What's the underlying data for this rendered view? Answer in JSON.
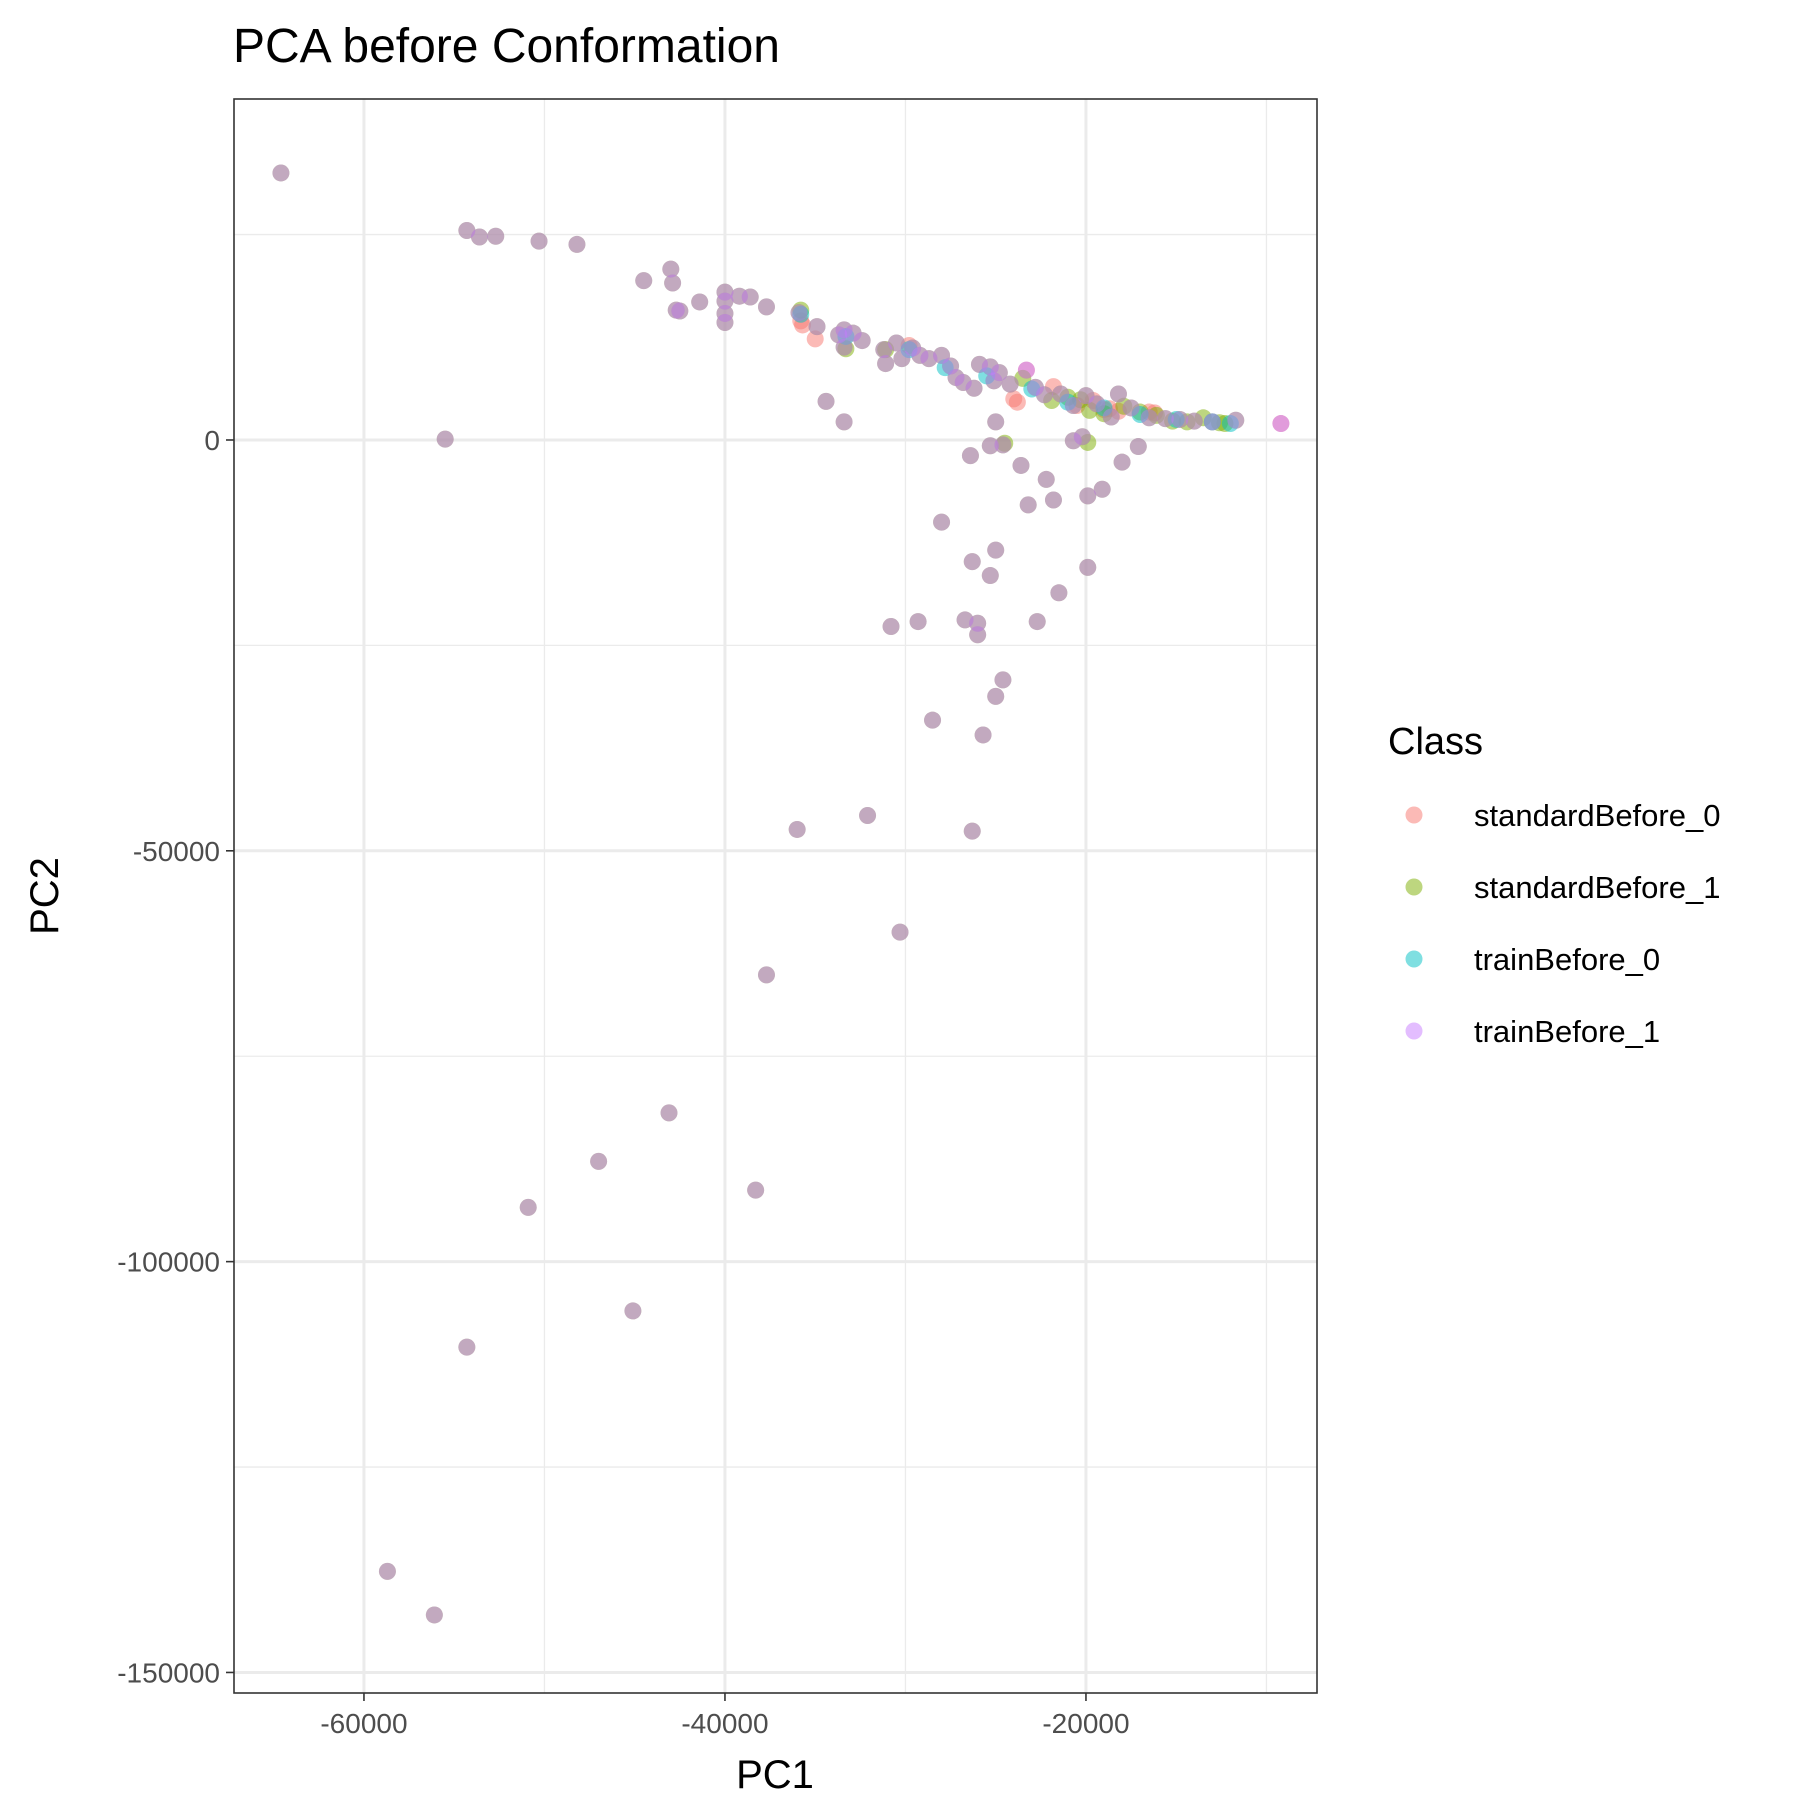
{
  "chart_data": {
    "type": "scatter",
    "title": "PCA before Conformation",
    "xlabel": "PC1",
    "ylabel": "PC2",
    "xlim": [
      -67200,
      -7200
    ],
    "ylim": [
      -152500,
      41500
    ],
    "x_ticks": [
      -60000,
      -40000,
      -20000
    ],
    "y_ticks": [
      -150000,
      -100000,
      -50000,
      0
    ],
    "x_minor_gridlines": [
      -50000,
      -30000,
      -10000
    ],
    "y_minor_gridlines": [
      -125000,
      -75000,
      -25000,
      25000
    ],
    "grid": true,
    "legend": {
      "title": "Class",
      "placement": "right",
      "entries": [
        {
          "name": "standardBefore_0",
          "color": "#F8766D"
        },
        {
          "name": "standardBefore_1",
          "color": "#7CAE00"
        },
        {
          "name": "trainBefore_0",
          "color": "#00BFC4"
        },
        {
          "name": "trainBefore_1",
          "color": "#C77CFF"
        }
      ]
    },
    "overlap_color": "#8A9A55",
    "series": [
      {
        "name": "standardBefore_0",
        "color": "#F8766D",
        "points": [
          [
            -35800,
            14500
          ],
          [
            -35700,
            14000
          ],
          [
            -35000,
            12300
          ],
          [
            -29800,
            11500
          ],
          [
            -23300,
            8500
          ],
          [
            -24000,
            5000
          ],
          [
            -23800,
            4600
          ],
          [
            -21800,
            6500
          ],
          [
            -20500,
            4200
          ],
          [
            -19600,
            4800
          ],
          [
            -19000,
            3700
          ],
          [
            -18700,
            3800
          ],
          [
            -18200,
            3500
          ],
          [
            -16500,
            3400
          ],
          [
            -16200,
            3300
          ],
          [
            -9200,
            2000
          ]
        ]
      },
      {
        "name": "standardBefore_1",
        "color": "#7CAE00",
        "points": [
          [
            -64600,
            32500
          ],
          [
            -54300,
            25500
          ],
          [
            -53600,
            24700
          ],
          [
            -52700,
            24800
          ],
          [
            -50300,
            24200
          ],
          [
            -48200,
            23800
          ],
          [
            -44500,
            19400
          ],
          [
            -43000,
            20800
          ],
          [
            -42900,
            19100
          ],
          [
            -42700,
            15800
          ],
          [
            -42500,
            15700
          ],
          [
            -41400,
            16800
          ],
          [
            -40000,
            18000
          ],
          [
            -40000,
            16900
          ],
          [
            -40000,
            15400
          ],
          [
            -40000,
            14300
          ],
          [
            -39200,
            17500
          ],
          [
            -38600,
            17400
          ],
          [
            -37700,
            16200
          ],
          [
            -35900,
            15500
          ],
          [
            -35800,
            15800
          ],
          [
            -34900,
            13800
          ],
          [
            -33700,
            12800
          ],
          [
            -33400,
            13400
          ],
          [
            -33400,
            11300
          ],
          [
            -33300,
            11100
          ],
          [
            -32900,
            13000
          ],
          [
            -32400,
            12100
          ],
          [
            -31200,
            11000
          ],
          [
            -31100,
            9300
          ],
          [
            -30500,
            11800
          ],
          [
            -30200,
            9900
          ],
          [
            -29600,
            11200
          ],
          [
            -29200,
            10300
          ],
          [
            -28700,
            9900
          ],
          [
            -28000,
            10300
          ],
          [
            -27500,
            9000
          ],
          [
            -27200,
            7600
          ],
          [
            -26800,
            7000
          ],
          [
            -26200,
            6300
          ],
          [
            -25900,
            9200
          ],
          [
            -25300,
            8900
          ],
          [
            -25100,
            7200
          ],
          [
            -24800,
            8200
          ],
          [
            -24200,
            6800
          ],
          [
            -23500,
            7500
          ],
          [
            -22800,
            6400
          ],
          [
            -22300,
            5500
          ],
          [
            -21900,
            4800
          ],
          [
            -21400,
            5600
          ],
          [
            -21000,
            5200
          ],
          [
            -20700,
            4200
          ],
          [
            -20300,
            4900
          ],
          [
            -20000,
            5400
          ],
          [
            -19800,
            3600
          ],
          [
            -19400,
            4400
          ],
          [
            -19000,
            3200
          ],
          [
            -18600,
            2800
          ],
          [
            -18200,
            5600
          ],
          [
            -17900,
            4100
          ],
          [
            -17500,
            3900
          ],
          [
            -17000,
            3400
          ],
          [
            -16500,
            2700
          ],
          [
            -16100,
            3000
          ],
          [
            -15600,
            2600
          ],
          [
            -15200,
            2300
          ],
          [
            -14800,
            2500
          ],
          [
            -14400,
            2200
          ],
          [
            -14000,
            2300
          ],
          [
            -13500,
            2700
          ],
          [
            -13000,
            2200
          ],
          [
            -12600,
            2100
          ],
          [
            -12300,
            2000
          ],
          [
            -11700,
            2400
          ],
          [
            -31100,
            11000
          ],
          [
            -34400,
            4700
          ],
          [
            -33400,
            2200
          ],
          [
            -26400,
            -1900
          ],
          [
            -24600,
            -600
          ],
          [
            -24500,
            -400
          ],
          [
            -23600,
            -3100
          ],
          [
            -23200,
            -7900
          ],
          [
            -22200,
            -4800
          ],
          [
            -21800,
            -7300
          ],
          [
            -20700,
            -100
          ],
          [
            -20200,
            400
          ],
          [
            -19900,
            -6800
          ],
          [
            -19900,
            -300
          ],
          [
            -19100,
            -6000
          ],
          [
            -18000,
            -2700
          ],
          [
            -17100,
            -800
          ],
          [
            -25300,
            -700
          ],
          [
            -25000,
            2200
          ],
          [
            -55500,
            100
          ],
          [
            -28000,
            -10000
          ],
          [
            -25000,
            -13400
          ],
          [
            -26300,
            -14800
          ],
          [
            -25300,
            -16500
          ],
          [
            -19900,
            -15500
          ],
          [
            -21500,
            -18600
          ],
          [
            -22700,
            -22100
          ],
          [
            -26700,
            -21900
          ],
          [
            -26000,
            -22300
          ],
          [
            -26000,
            -23700
          ],
          [
            -29300,
            -22100
          ],
          [
            -30800,
            -22700
          ],
          [
            -24600,
            -29200
          ],
          [
            -25000,
            -31200
          ],
          [
            -28500,
            -34100
          ],
          [
            -25700,
            -35900
          ],
          [
            -36000,
            -47400
          ],
          [
            -32100,
            -45700
          ],
          [
            -26300,
            -47600
          ],
          [
            -30300,
            -59900
          ],
          [
            -37700,
            -65100
          ],
          [
            -43100,
            -81900
          ],
          [
            -47000,
            -87800
          ],
          [
            -38300,
            -91300
          ],
          [
            -50900,
            -93400
          ],
          [
            -45100,
            -106000
          ],
          [
            -54300,
            -110400
          ],
          [
            -58700,
            -137700
          ],
          [
            -56100,
            -143000
          ]
        ]
      },
      {
        "name": "trainBefore_0",
        "color": "#00BFC4",
        "points": [
          [
            -35800,
            15300
          ],
          [
            -33300,
            12600
          ],
          [
            -29800,
            11000
          ],
          [
            -27800,
            8800
          ],
          [
            -25500,
            7800
          ],
          [
            -23000,
            6200
          ],
          [
            -21000,
            4600
          ],
          [
            -19000,
            3900
          ],
          [
            -17000,
            3100
          ],
          [
            -15000,
            2500
          ],
          [
            -13000,
            2200
          ],
          [
            -12000,
            2000
          ]
        ]
      },
      {
        "name": "trainBefore_1",
        "color": "#C77CFF",
        "points": [
          [
            -64600,
            32500
          ],
          [
            -54300,
            25500
          ],
          [
            -53600,
            24700
          ],
          [
            -52700,
            24800
          ],
          [
            -50300,
            24200
          ],
          [
            -48200,
            23800
          ],
          [
            -44500,
            19400
          ],
          [
            -43000,
            20800
          ],
          [
            -42900,
            19100
          ],
          [
            -42700,
            15800
          ],
          [
            -42500,
            15700
          ],
          [
            -41400,
            16800
          ],
          [
            -40000,
            18000
          ],
          [
            -40000,
            16900
          ],
          [
            -40000,
            15400
          ],
          [
            -40000,
            14300
          ],
          [
            -39200,
            17500
          ],
          [
            -38600,
            17400
          ],
          [
            -37700,
            16200
          ],
          [
            -35900,
            15500
          ],
          [
            -34900,
            13800
          ],
          [
            -33700,
            12800
          ],
          [
            -33400,
            13400
          ],
          [
            -33400,
            11300
          ],
          [
            -32900,
            13000
          ],
          [
            -32400,
            12100
          ],
          [
            -31200,
            11000
          ],
          [
            -31100,
            9300
          ],
          [
            -30500,
            11800
          ],
          [
            -30200,
            9900
          ],
          [
            -29600,
            11200
          ],
          [
            -29200,
            10300
          ],
          [
            -28700,
            9900
          ],
          [
            -28000,
            10300
          ],
          [
            -27500,
            9000
          ],
          [
            -27200,
            7600
          ],
          [
            -26800,
            7000
          ],
          [
            -26200,
            6300
          ],
          [
            -25900,
            9200
          ],
          [
            -25300,
            8900
          ],
          [
            -25100,
            7200
          ],
          [
            -24800,
            8200
          ],
          [
            -24200,
            6800
          ],
          [
            -23300,
            8500
          ],
          [
            -22800,
            6400
          ],
          [
            -22300,
            5500
          ],
          [
            -21400,
            5600
          ],
          [
            -20700,
            4200
          ],
          [
            -20000,
            5400
          ],
          [
            -19400,
            4400
          ],
          [
            -18600,
            2800
          ],
          [
            -18200,
            5600
          ],
          [
            -17500,
            3900
          ],
          [
            -16500,
            2700
          ],
          [
            -15600,
            2600
          ],
          [
            -14800,
            2500
          ],
          [
            -14000,
            2300
          ],
          [
            -13000,
            2200
          ],
          [
            -11700,
            2400
          ],
          [
            -9200,
            2000
          ],
          [
            -34400,
            4700
          ],
          [
            -33400,
            2200
          ],
          [
            -26400,
            -1900
          ],
          [
            -24600,
            -600
          ],
          [
            -23600,
            -3100
          ],
          [
            -23200,
            -7900
          ],
          [
            -22200,
            -4800
          ],
          [
            -21800,
            -7300
          ],
          [
            -20700,
            -100
          ],
          [
            -20200,
            400
          ],
          [
            -19900,
            -6800
          ],
          [
            -19100,
            -6000
          ],
          [
            -18000,
            -2700
          ],
          [
            -17100,
            -800
          ],
          [
            -25300,
            -700
          ],
          [
            -25000,
            2200
          ],
          [
            -55500,
            100
          ],
          [
            -28000,
            -10000
          ],
          [
            -25000,
            -13400
          ],
          [
            -26300,
            -14800
          ],
          [
            -25300,
            -16500
          ],
          [
            -19900,
            -15500
          ],
          [
            -21500,
            -18600
          ],
          [
            -22700,
            -22100
          ],
          [
            -26700,
            -21900
          ],
          [
            -26000,
            -22300
          ],
          [
            -26000,
            -23700
          ],
          [
            -29300,
            -22100
          ],
          [
            -30800,
            -22700
          ],
          [
            -24600,
            -29200
          ],
          [
            -25000,
            -31200
          ],
          [
            -28500,
            -34100
          ],
          [
            -25700,
            -35900
          ],
          [
            -36000,
            -47400
          ],
          [
            -32100,
            -45700
          ],
          [
            -26300,
            -47600
          ],
          [
            -30300,
            -59900
          ],
          [
            -37700,
            -65100
          ],
          [
            -43100,
            -81900
          ],
          [
            -47000,
            -87800
          ],
          [
            -38300,
            -91300
          ],
          [
            -50900,
            -93400
          ],
          [
            -45100,
            -106000
          ],
          [
            -54300,
            -110400
          ],
          [
            -58700,
            -137700
          ],
          [
            -56100,
            -143000
          ]
        ]
      }
    ]
  }
}
